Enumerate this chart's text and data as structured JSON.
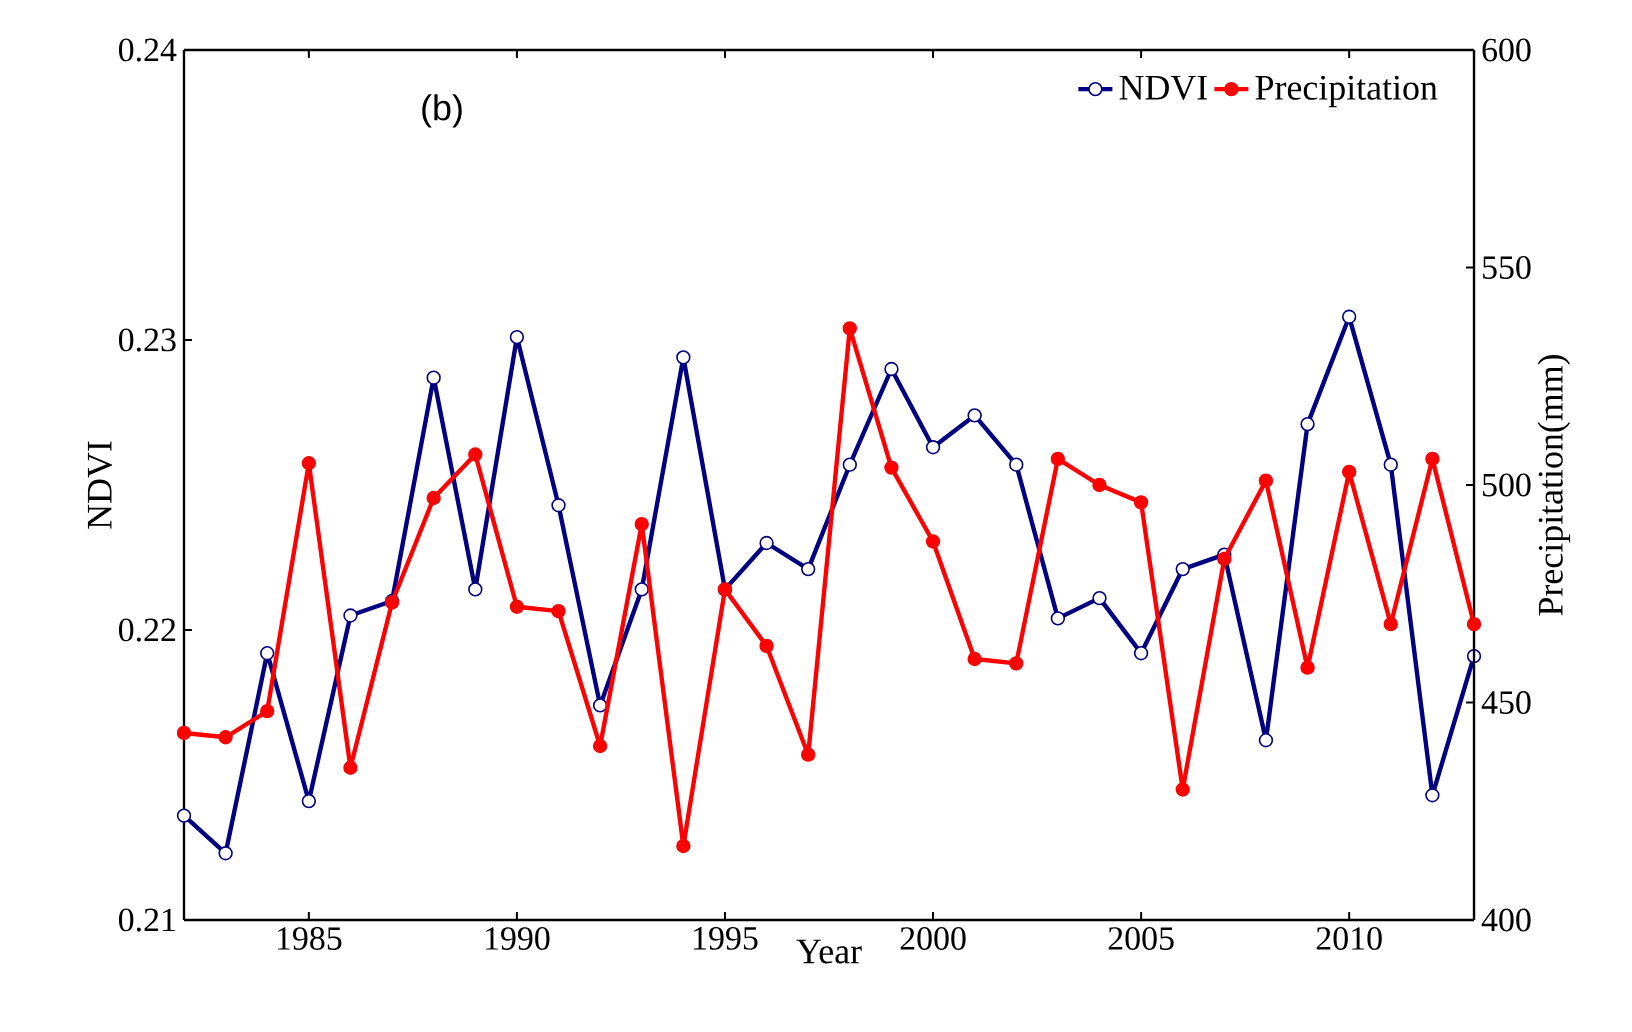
{
  "chart_data": {
    "type": "line",
    "annotations": [
      "(b)"
    ],
    "xlabel": "Year",
    "ylabel": "NDVI",
    "y2label": "Precipitation(mm)",
    "x": [
      1982,
      1983,
      1984,
      1985,
      1986,
      1987,
      1988,
      1989,
      1990,
      1991,
      1992,
      1993,
      1994,
      1995,
      1996,
      1997,
      1998,
      1999,
      2000,
      2001,
      2002,
      2003,
      2004,
      2005,
      2006,
      2007,
      2008,
      2009,
      2010,
      2011,
      2012,
      2013
    ],
    "series": [
      {
        "name": "NDVI",
        "color": "#000080",
        "values": [
          0.2136,
          0.2123,
          0.2192,
          0.2141,
          0.2205,
          0.221,
          0.2287,
          0.2214,
          0.2301,
          0.2243,
          0.2174,
          0.2214,
          0.2294,
          0.2214,
          0.223,
          0.2221,
          0.2257,
          0.229,
          0.2263,
          0.2274,
          0.2257,
          0.2204,
          0.2211,
          0.2192,
          0.2221,
          0.2226,
          0.2162,
          0.2271,
          0.2308,
          0.2257,
          0.2143,
          0.2191
        ]
      },
      {
        "name": "Precipitation",
        "color": "#ff0000",
        "axis": "y2",
        "values": [
          443,
          442,
          448,
          505,
          435,
          473,
          497,
          507,
          472,
          471,
          440,
          491,
          417,
          476,
          463,
          438,
          536,
          504,
          487,
          460,
          459,
          506,
          500,
          496,
          430,
          483,
          501,
          458,
          503,
          468,
          506,
          468
        ]
      }
    ],
    "xlim": [
      1982,
      2013
    ],
    "xticks": [
      1985,
      1990,
      1995,
      2000,
      2005,
      2010
    ],
    "ylim": [
      0.21,
      0.24
    ],
    "yticks": [
      0.21,
      0.22,
      0.23,
      0.24
    ],
    "y2lim": [
      400,
      600
    ],
    "y2ticks": [
      400,
      450,
      500,
      550,
      600
    ],
    "legend": "top right",
    "marker": "circle",
    "line_style": "solid",
    "grid": false
  }
}
